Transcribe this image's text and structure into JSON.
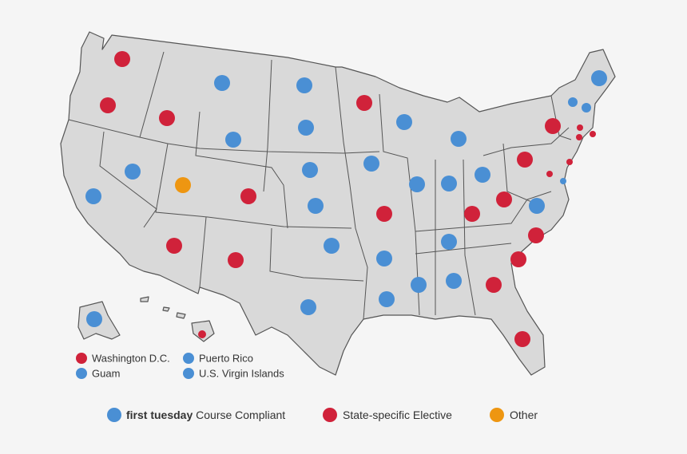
{
  "colors": {
    "compliant": "#4a8fd4",
    "elective": "#d0223a",
    "other": "#ee9611",
    "land": "#d9d9d9",
    "border": "#555555"
  },
  "territories": [
    {
      "label": "Washington D.C.",
      "status": "elective"
    },
    {
      "label": "Puerto Rico",
      "status": "compliant"
    },
    {
      "label": "Guam",
      "status": "compliant"
    },
    {
      "label": "U.S. Virgin Islands",
      "status": "compliant"
    }
  ],
  "legend": {
    "compliant_bold": "first tuesday",
    "compliant_rest": " Course Compliant",
    "elective": "State-specific Elective",
    "other": "Other"
  },
  "states": [
    {
      "code": "WA",
      "status": "elective"
    },
    {
      "code": "OR",
      "status": "elective"
    },
    {
      "code": "CA",
      "status": "compliant"
    },
    {
      "code": "ID",
      "status": "elective"
    },
    {
      "code": "NV",
      "status": "compliant"
    },
    {
      "code": "UT",
      "status": "other"
    },
    {
      "code": "AZ",
      "status": "elective"
    },
    {
      "code": "MT",
      "status": "compliant"
    },
    {
      "code": "WY",
      "status": "compliant"
    },
    {
      "code": "CO",
      "status": "elective"
    },
    {
      "code": "NM",
      "status": "elective"
    },
    {
      "code": "ND",
      "status": "compliant"
    },
    {
      "code": "SD",
      "status": "compliant"
    },
    {
      "code": "NE",
      "status": "compliant"
    },
    {
      "code": "KS",
      "status": "compliant"
    },
    {
      "code": "OK",
      "status": "compliant"
    },
    {
      "code": "TX",
      "status": "compliant"
    },
    {
      "code": "MN",
      "status": "elective"
    },
    {
      "code": "IA",
      "status": "compliant"
    },
    {
      "code": "MO",
      "status": "elective"
    },
    {
      "code": "AR",
      "status": "compliant"
    },
    {
      "code": "LA",
      "status": "compliant"
    },
    {
      "code": "WI",
      "status": "compliant"
    },
    {
      "code": "IL",
      "status": "compliant"
    },
    {
      "code": "MI",
      "status": "compliant"
    },
    {
      "code": "IN",
      "status": "compliant"
    },
    {
      "code": "OH",
      "status": "compliant"
    },
    {
      "code": "KY",
      "status": "elective"
    },
    {
      "code": "TN",
      "status": "compliant"
    },
    {
      "code": "MS",
      "status": "compliant"
    },
    {
      "code": "AL",
      "status": "compliant"
    },
    {
      "code": "GA",
      "status": "elective"
    },
    {
      "code": "FL",
      "status": "elective"
    },
    {
      "code": "SC",
      "status": "elective"
    },
    {
      "code": "NC",
      "status": "elective"
    },
    {
      "code": "VA",
      "status": "compliant"
    },
    {
      "code": "WV",
      "status": "elective"
    },
    {
      "code": "PA",
      "status": "elective"
    },
    {
      "code": "NY",
      "status": "elective"
    },
    {
      "code": "ME",
      "status": "compliant"
    },
    {
      "code": "VT",
      "status": "compliant"
    },
    {
      "code": "NH",
      "status": "compliant"
    },
    {
      "code": "MA",
      "status": "elective"
    },
    {
      "code": "CT",
      "status": "elective"
    },
    {
      "code": "RI",
      "status": "elective"
    },
    {
      "code": "NJ",
      "status": "elective"
    },
    {
      "code": "DE",
      "status": "compliant"
    },
    {
      "code": "MD",
      "status": "elective"
    },
    {
      "code": "AK",
      "status": "compliant"
    },
    {
      "code": "HI",
      "status": "elective"
    }
  ]
}
